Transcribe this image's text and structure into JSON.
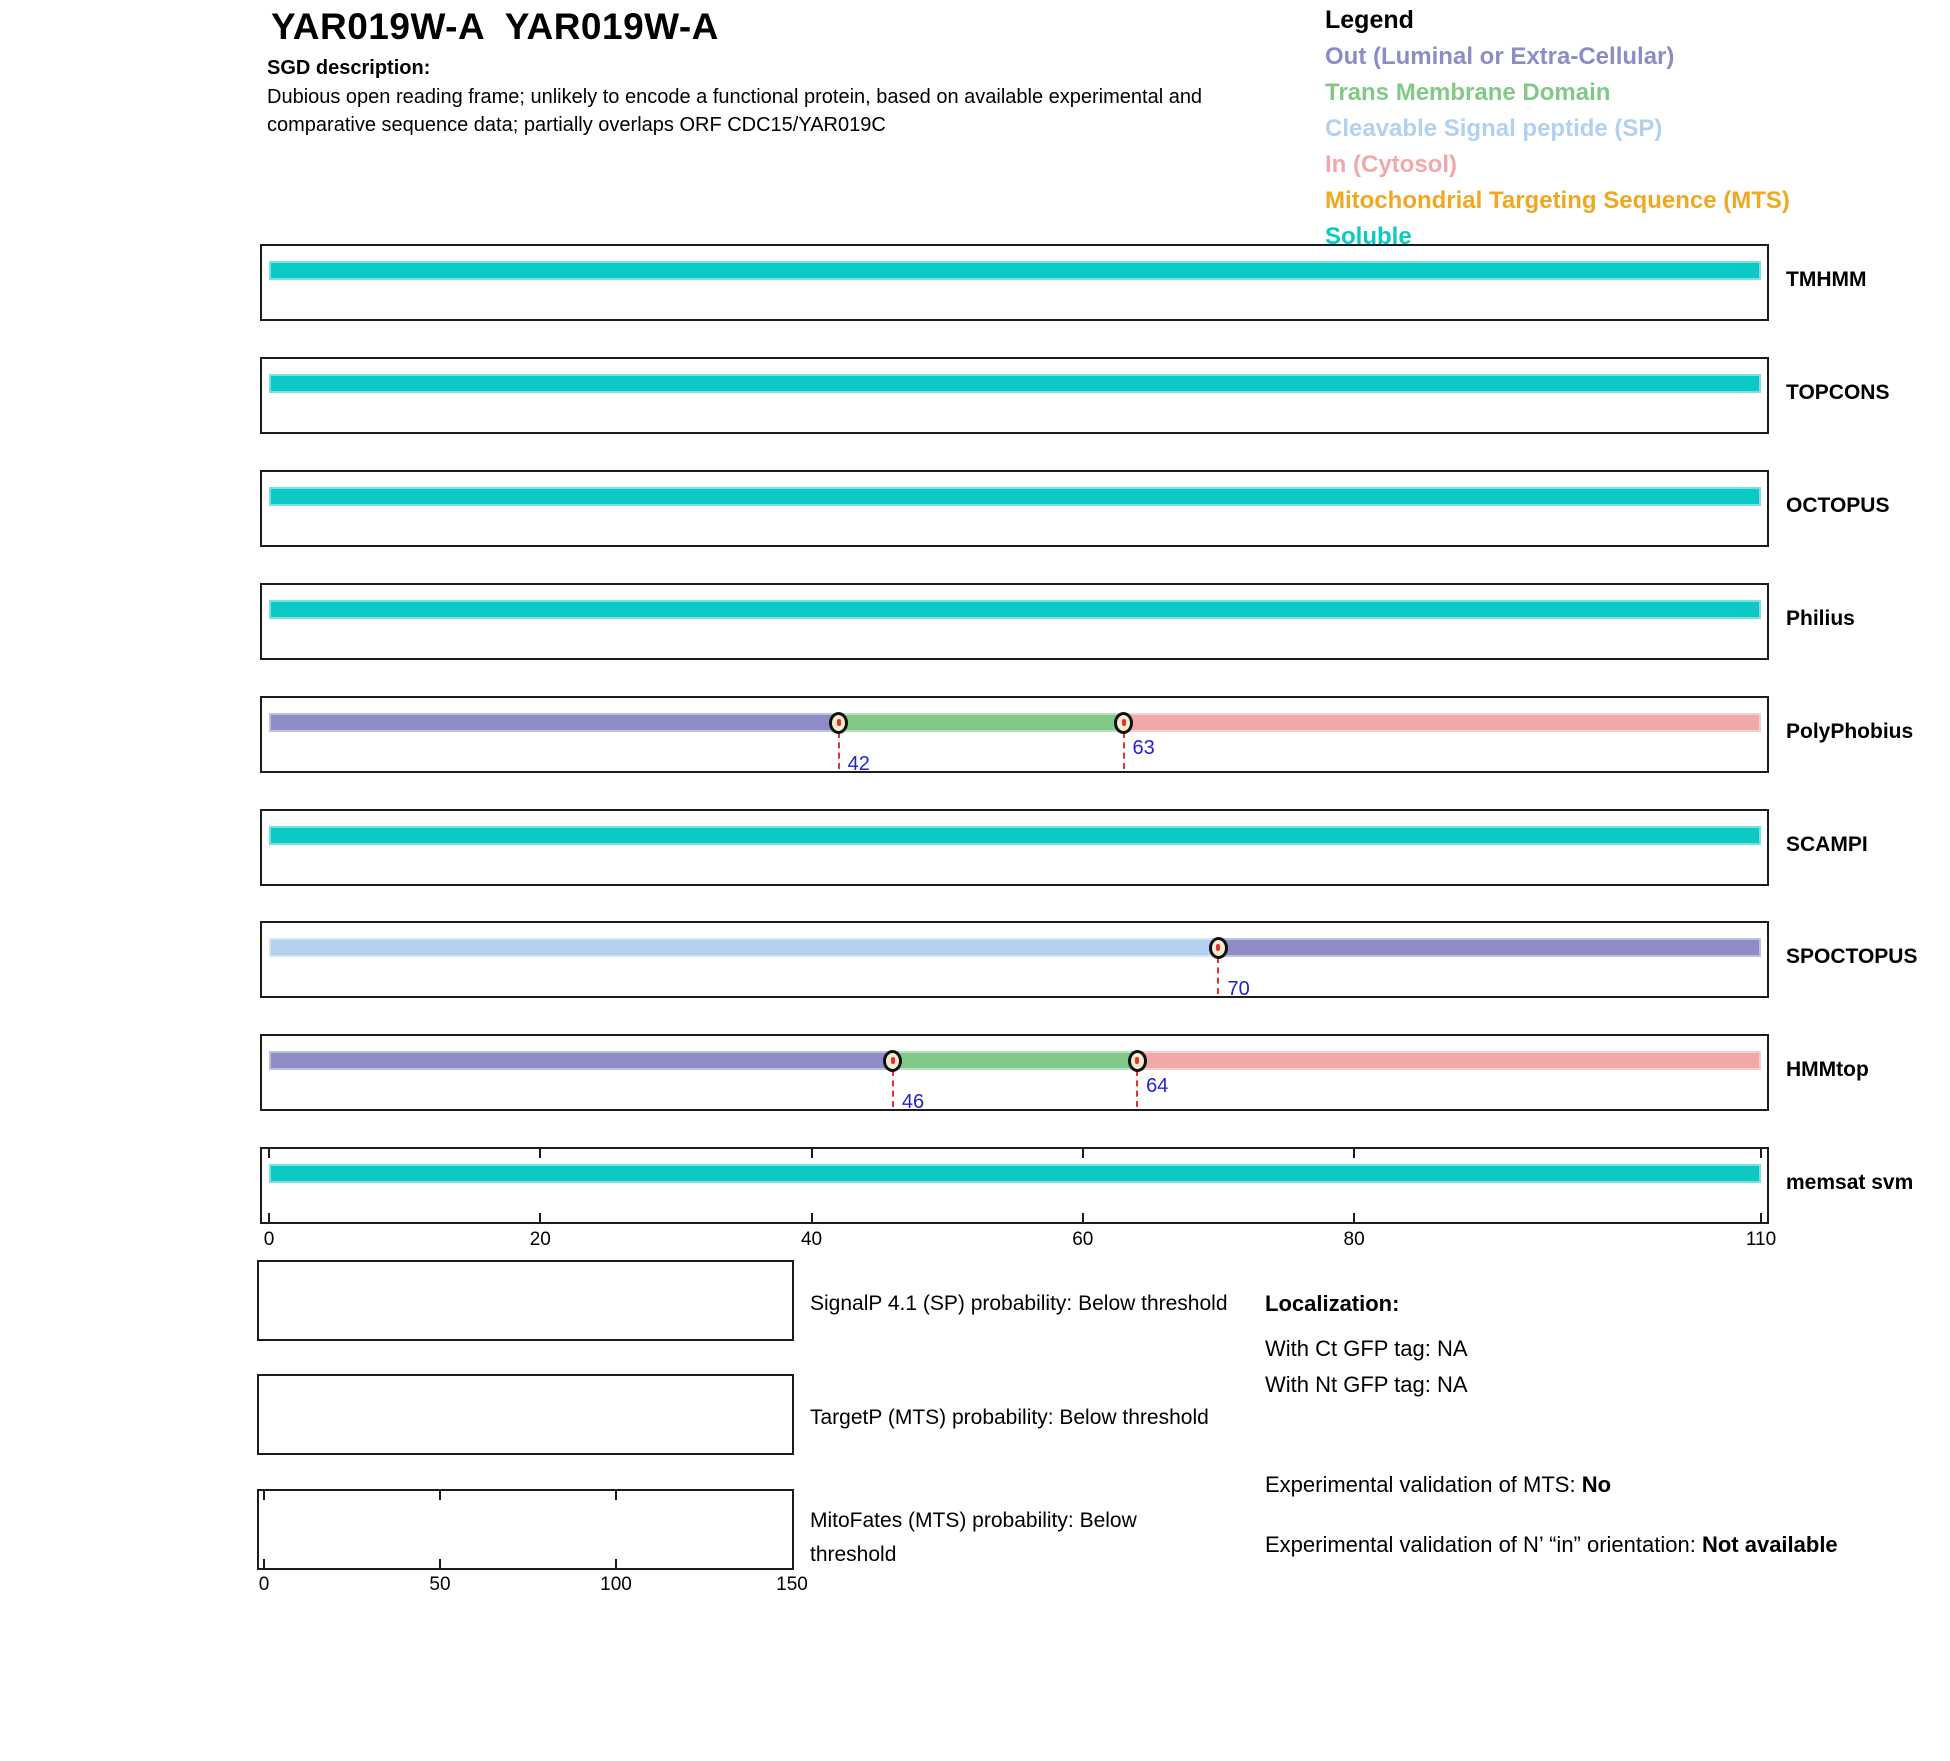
{
  "header": {
    "title": "YAR019W-A  YAR019W-A",
    "sgd_label": "SGD description:",
    "description_lines": [
      "Dubious open reading frame; unlikely to encode a functional protein, based on available experimental and",
      "comparative sequence data; partially overlaps ORF CDC15/YAR019C"
    ]
  },
  "legend": {
    "title": "Legend",
    "items": [
      {
        "label": "Out (Luminal or Extra-Cellular)",
        "class": "out",
        "color": "#8D8CC5"
      },
      {
        "label": "Trans Membrane Domain",
        "class": "tm",
        "color": "#82C989"
      },
      {
        "label": "Cleavable Signal peptide (SP)",
        "class": "sp",
        "color": "#B2D0EF"
      },
      {
        "label": "In (Cytosol)",
        "class": "in",
        "color": "#F0A8A8"
      },
      {
        "label": "Mitochondrial Targeting Sequence (MTS)",
        "class": "mts",
        "color": "#F0A820"
      },
      {
        "label": "Soluble",
        "class": "soluble",
        "color": "#0BC9C4"
      }
    ]
  },
  "colors": {
    "out": "#8D8CC5",
    "tm": "#82C989",
    "sp": "#B2D0EF",
    "in": "#F0A8A8",
    "mts": "#F0A820",
    "soluble": "#0BC9C4"
  },
  "chart_data": {
    "type": "bar",
    "subtype": "membrane-topology-prediction-tracks",
    "title": "YAR019W-A topology predictions",
    "x_axis": {
      "range": [
        0,
        110
      ],
      "ticks": [
        0,
        20,
        40,
        60,
        80,
        110
      ]
    },
    "tracks": [
      {
        "name": "TMHMM",
        "segments": [
          {
            "start": 0,
            "end": 110,
            "class": "soluble"
          }
        ],
        "boundaries": []
      },
      {
        "name": "TOPCONS",
        "segments": [
          {
            "start": 0,
            "end": 110,
            "class": "soluble"
          }
        ],
        "boundaries": []
      },
      {
        "name": "OCTOPUS",
        "segments": [
          {
            "start": 0,
            "end": 110,
            "class": "soluble"
          }
        ],
        "boundaries": []
      },
      {
        "name": "Philius",
        "segments": [
          {
            "start": 0,
            "end": 110,
            "class": "soluble"
          }
        ],
        "boundaries": []
      },
      {
        "name": "PolyPhobius",
        "segments": [
          {
            "start": 0,
            "end": 42,
            "class": "out"
          },
          {
            "start": 42,
            "end": 63,
            "class": "tm"
          },
          {
            "start": 63,
            "end": 110,
            "class": "in"
          }
        ],
        "boundaries": [
          42,
          63
        ]
      },
      {
        "name": "SCAMPI",
        "segments": [
          {
            "start": 0,
            "end": 110,
            "class": "soluble"
          }
        ],
        "boundaries": []
      },
      {
        "name": "SPOCTOPUS",
        "segments": [
          {
            "start": 0,
            "end": 70,
            "class": "sp"
          },
          {
            "start": 70,
            "end": 110,
            "class": "out"
          }
        ],
        "boundaries": [
          70
        ]
      },
      {
        "name": "HMMtop",
        "segments": [
          {
            "start": 0,
            "end": 46,
            "class": "out"
          },
          {
            "start": 46,
            "end": 64,
            "class": "tm"
          },
          {
            "start": 64,
            "end": 110,
            "class": "in"
          }
        ],
        "boundaries": [
          46,
          64
        ]
      },
      {
        "name": "memsat svm",
        "segments": [
          {
            "start": 0,
            "end": 110,
            "class": "soluble"
          }
        ],
        "boundaries": [],
        "show_axis": true
      }
    ],
    "probability_plots": {
      "x_axis": {
        "range": [
          0,
          150
        ],
        "ticks": [
          0,
          50,
          100,
          150
        ]
      },
      "plots": [
        {
          "name": "SignalP",
          "caption": "SignalP 4.1 (SP) probability: Below threshold",
          "values": []
        },
        {
          "name": "TargetP",
          "caption": "TargetP (MTS) probability: Below threshold",
          "values": []
        },
        {
          "name": "MitoFates",
          "caption": "MitoFates (MTS) probability: Below threshold",
          "values": [],
          "show_axis": true
        }
      ]
    }
  },
  "localization": {
    "title": "Localization:",
    "ct_line": "With Ct GFP tag: NA",
    "nt_line": "With Nt GFP tag: NA",
    "mts_prefix": "Experimental validation of MTS: ",
    "mts_value": "No",
    "orientation_prefix": "Experimental validation of N’ “in” orientation: ",
    "orientation_value": "Not available"
  }
}
